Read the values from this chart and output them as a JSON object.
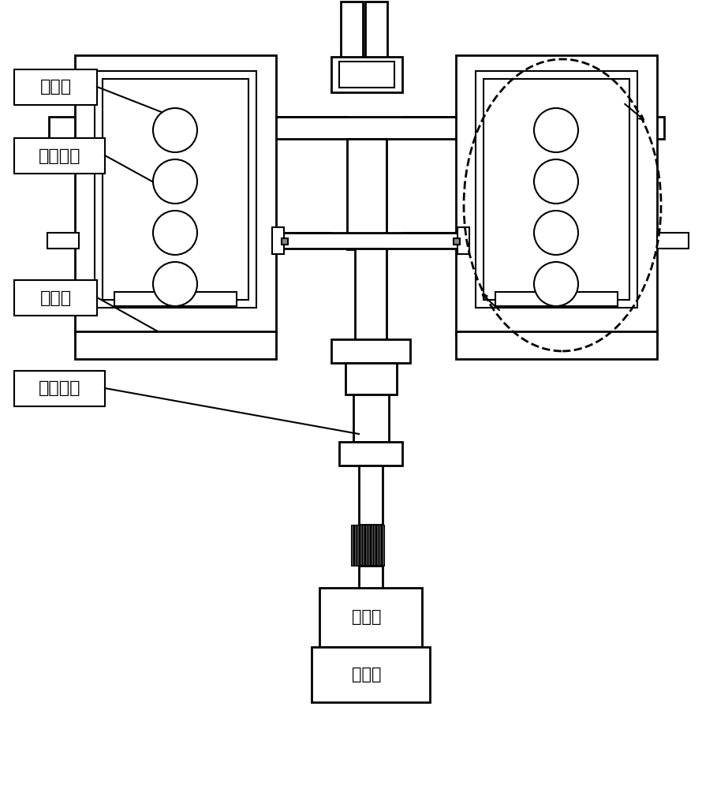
{
  "title": "",
  "background_color": "#ffffff",
  "line_color": "#000000",
  "label_上磁体": "上磁体",
  "label_螺旋线圈": "螺旋线圈",
  "label_下磁体": "下磁体",
  "label_绝缘拉杆": "绝缘拉杆",
  "label_动触头": "动触头",
  "label_静触头": "静触头",
  "font_size_labels": 16,
  "font_size_boxes": 15
}
